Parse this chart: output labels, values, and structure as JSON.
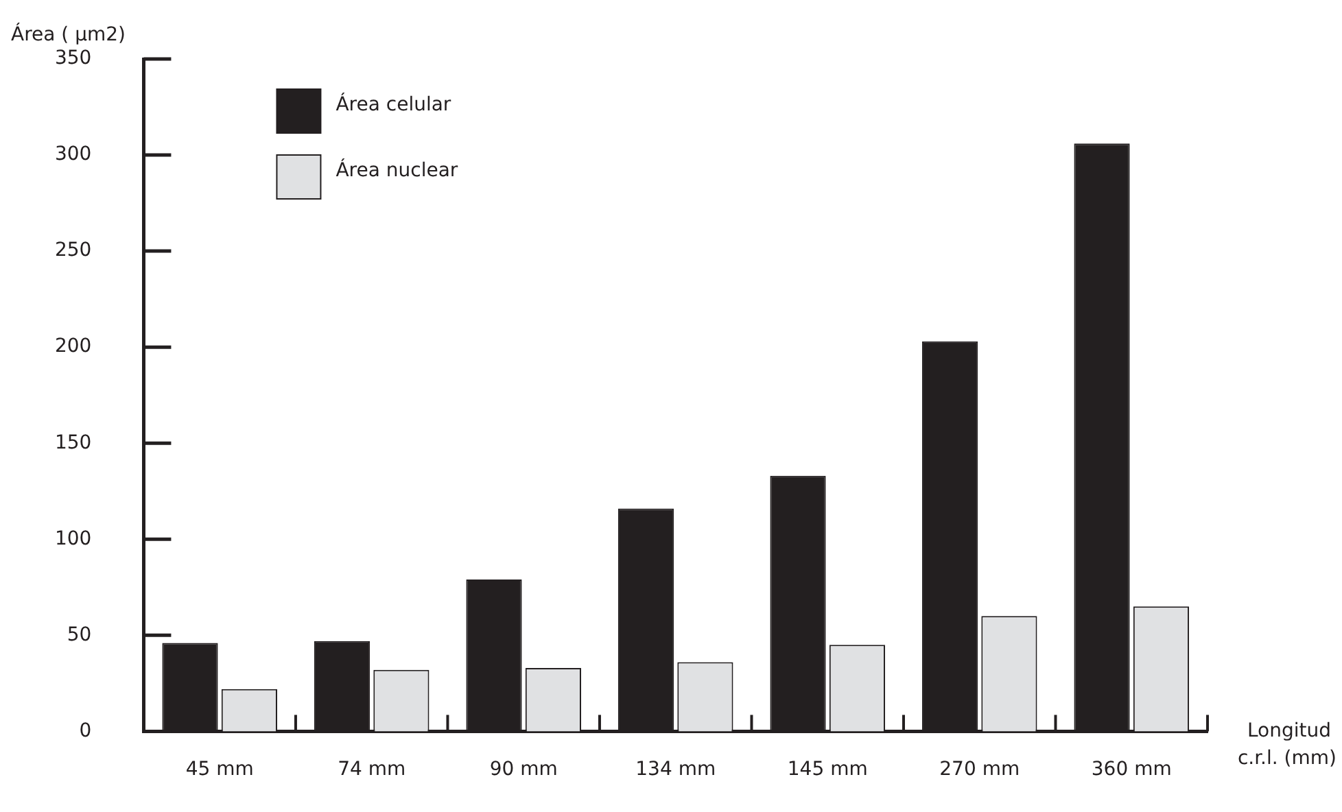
{
  "chart_data": {
    "type": "bar",
    "ylabel": "Área ( µm2)",
    "xlabel": "Longitud c.r.l. (mm)",
    "categories": [
      "45 mm",
      "74 mm",
      "90 mm",
      "134 mm",
      "145 mm",
      "270 mm",
      "360 mm"
    ],
    "series": [
      {
        "name": "Área celular",
        "color": "#231f20",
        "values": [
          46,
          47,
          79,
          116,
          133,
          203,
          306
        ]
      },
      {
        "name": "Área nuclear",
        "color": "#e0e1e3",
        "values": [
          22,
          32,
          33,
          36,
          45,
          60,
          65
        ]
      }
    ],
    "ylim": [
      0,
      350
    ],
    "yticks": [
      0,
      50,
      100,
      150,
      200,
      250,
      300,
      350
    ],
    "legend": "top left"
  }
}
